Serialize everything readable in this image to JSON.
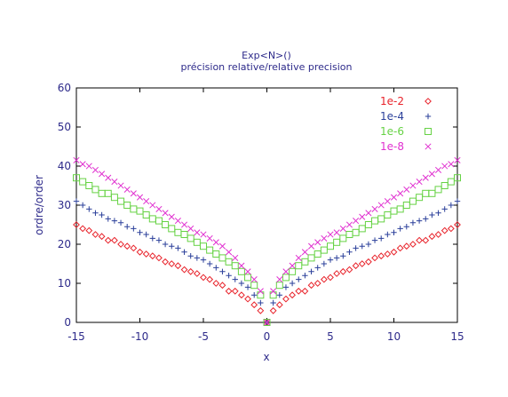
{
  "chart_data": {
    "type": "scatter",
    "title": "Exp<N>()",
    "subtitle": "précision relative/relative precision",
    "xlabel": "x",
    "ylabel": "ordre/order",
    "xlim": [
      -15,
      15
    ],
    "ylim": [
      0,
      60
    ],
    "xticks": [
      "-15",
      "-10",
      "-5",
      "0",
      "5",
      "10",
      "15"
    ],
    "yticks": [
      "0",
      "10",
      "20",
      "30",
      "40",
      "50",
      "60"
    ],
    "grid": false,
    "legend_position": "top-right",
    "x": [
      -15,
      -14.5,
      -14,
      -13.5,
      -13,
      -12.5,
      -12,
      -11.5,
      -11,
      -10.5,
      -10,
      -9.5,
      -9,
      -8.5,
      -8,
      -7.5,
      -7,
      -6.5,
      -6,
      -5.5,
      -5,
      -4.5,
      -4,
      -3.5,
      -3,
      -2.5,
      -2,
      -1.5,
      -1,
      -0.5,
      0,
      0.5,
      1,
      1.5,
      2,
      2.5,
      3,
      3.5,
      4,
      4.5,
      5,
      5.5,
      6,
      6.5,
      7,
      7.5,
      8,
      8.5,
      9,
      9.5,
      10,
      10.5,
      11,
      11.5,
      12,
      12.5,
      13,
      13.5,
      14,
      14.5,
      15
    ],
    "series": [
      {
        "name": "1e-2",
        "marker": "diamond",
        "color": "#e8222a",
        "values": [
          25,
          24,
          23.5,
          22.5,
          22,
          21,
          21,
          20,
          19.5,
          19,
          18,
          17.5,
          17,
          16.5,
          15.5,
          15,
          14.5,
          13.5,
          13,
          12.5,
          11.5,
          11,
          10,
          9.5,
          8,
          8,
          7,
          6,
          4.5,
          3,
          0,
          3,
          4.5,
          6,
          7,
          8,
          8,
          9.5,
          10,
          11,
          11.5,
          12.5,
          13,
          13.5,
          14.5,
          15,
          15.5,
          16.5,
          17,
          17.5,
          18,
          19,
          19.5,
          20,
          21,
          21,
          22,
          22.5,
          23.5,
          24,
          25
        ]
      },
      {
        "name": "1e-4",
        "marker": "plus",
        "color": "#2a3f9a",
        "values": [
          31,
          30,
          29,
          28,
          27.5,
          26.5,
          26,
          25.5,
          24.5,
          24,
          23,
          22.5,
          21.5,
          21,
          20,
          19.5,
          19,
          18,
          17,
          16.5,
          16,
          15,
          14,
          13,
          12,
          11,
          10,
          9,
          7,
          5,
          0,
          5,
          7,
          9,
          10,
          11,
          12,
          13,
          14,
          15,
          16,
          16.5,
          17,
          18,
          19,
          19.5,
          20,
          21,
          21.5,
          22.5,
          23,
          24,
          24.5,
          25.5,
          26,
          26.5,
          27.5,
          28,
          29,
          30,
          31
        ]
      },
      {
        "name": "1e-6",
        "marker": "square",
        "color": "#66d244",
        "values": [
          37,
          36,
          35,
          34,
          33,
          33,
          32,
          31,
          30,
          29,
          28.5,
          27.5,
          26.5,
          26,
          25,
          24,
          23,
          22.5,
          21.5,
          20.5,
          19.5,
          18.5,
          17.5,
          16.5,
          15.5,
          14.5,
          13,
          11.5,
          9.5,
          7,
          0,
          7,
          9.5,
          11.5,
          13,
          14.5,
          15.5,
          16.5,
          17.5,
          18.5,
          19.5,
          20.5,
          21.5,
          22.5,
          23,
          24,
          25,
          26,
          26.5,
          27.5,
          28.5,
          29,
          30,
          31,
          32,
          33,
          33,
          34,
          35,
          36,
          37
        ]
      },
      {
        "name": "1e-8",
        "marker": "cross",
        "color": "#e030d0",
        "values": [
          41.5,
          40.5,
          40,
          39,
          38,
          37,
          36,
          35,
          34,
          33,
          32,
          31,
          30,
          29,
          28,
          27,
          26,
          25,
          24,
          23,
          22.5,
          21.5,
          20.5,
          19.5,
          18,
          16.5,
          14.5,
          13,
          11,
          8,
          0,
          8,
          11,
          13,
          14.5,
          16.5,
          18,
          19.5,
          20.5,
          21.5,
          22.5,
          23,
          24,
          25,
          26,
          27,
          28,
          29,
          30,
          31,
          32,
          33,
          34,
          35,
          36,
          37,
          38,
          39,
          40,
          40.5,
          41.5
        ]
      }
    ]
  }
}
